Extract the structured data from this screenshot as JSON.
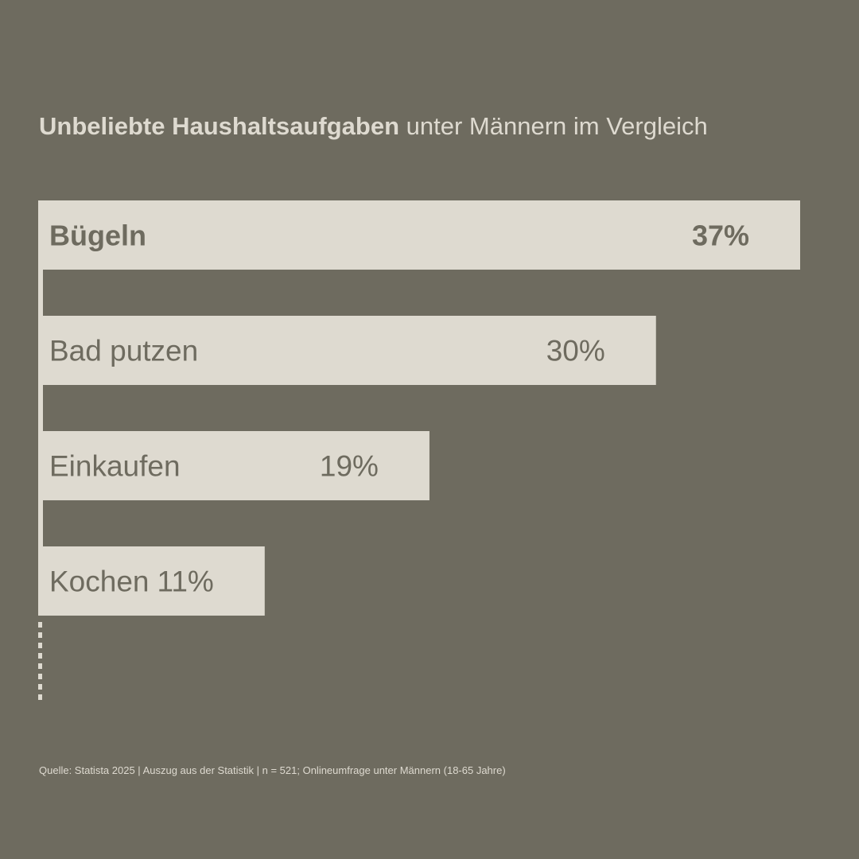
{
  "title": {
    "bold": "Unbeliebte Haushaltsaufgaben",
    "regular": "unter Männern im Vergleich"
  },
  "colors": {
    "background": "#6e6b5f",
    "bar": "#dedad0",
    "bar_text": "#6e6b5f"
  },
  "chart_data": {
    "type": "bar",
    "orientation": "horizontal",
    "categories": [
      "Bügeln",
      "Bad putzen",
      "Einkaufen",
      "Kochen"
    ],
    "values": [
      37,
      30,
      19,
      11
    ],
    "value_labels": [
      "37%",
      "30%",
      "19%",
      "11%"
    ],
    "highlight_index": 0,
    "unit": "%",
    "grid": false,
    "legend": "none"
  },
  "source": "Quelle: Statista 2025 | Auszug aus der Statistik | n = 521; Onlineumfrage unter Männern (18-65 Jahre)"
}
